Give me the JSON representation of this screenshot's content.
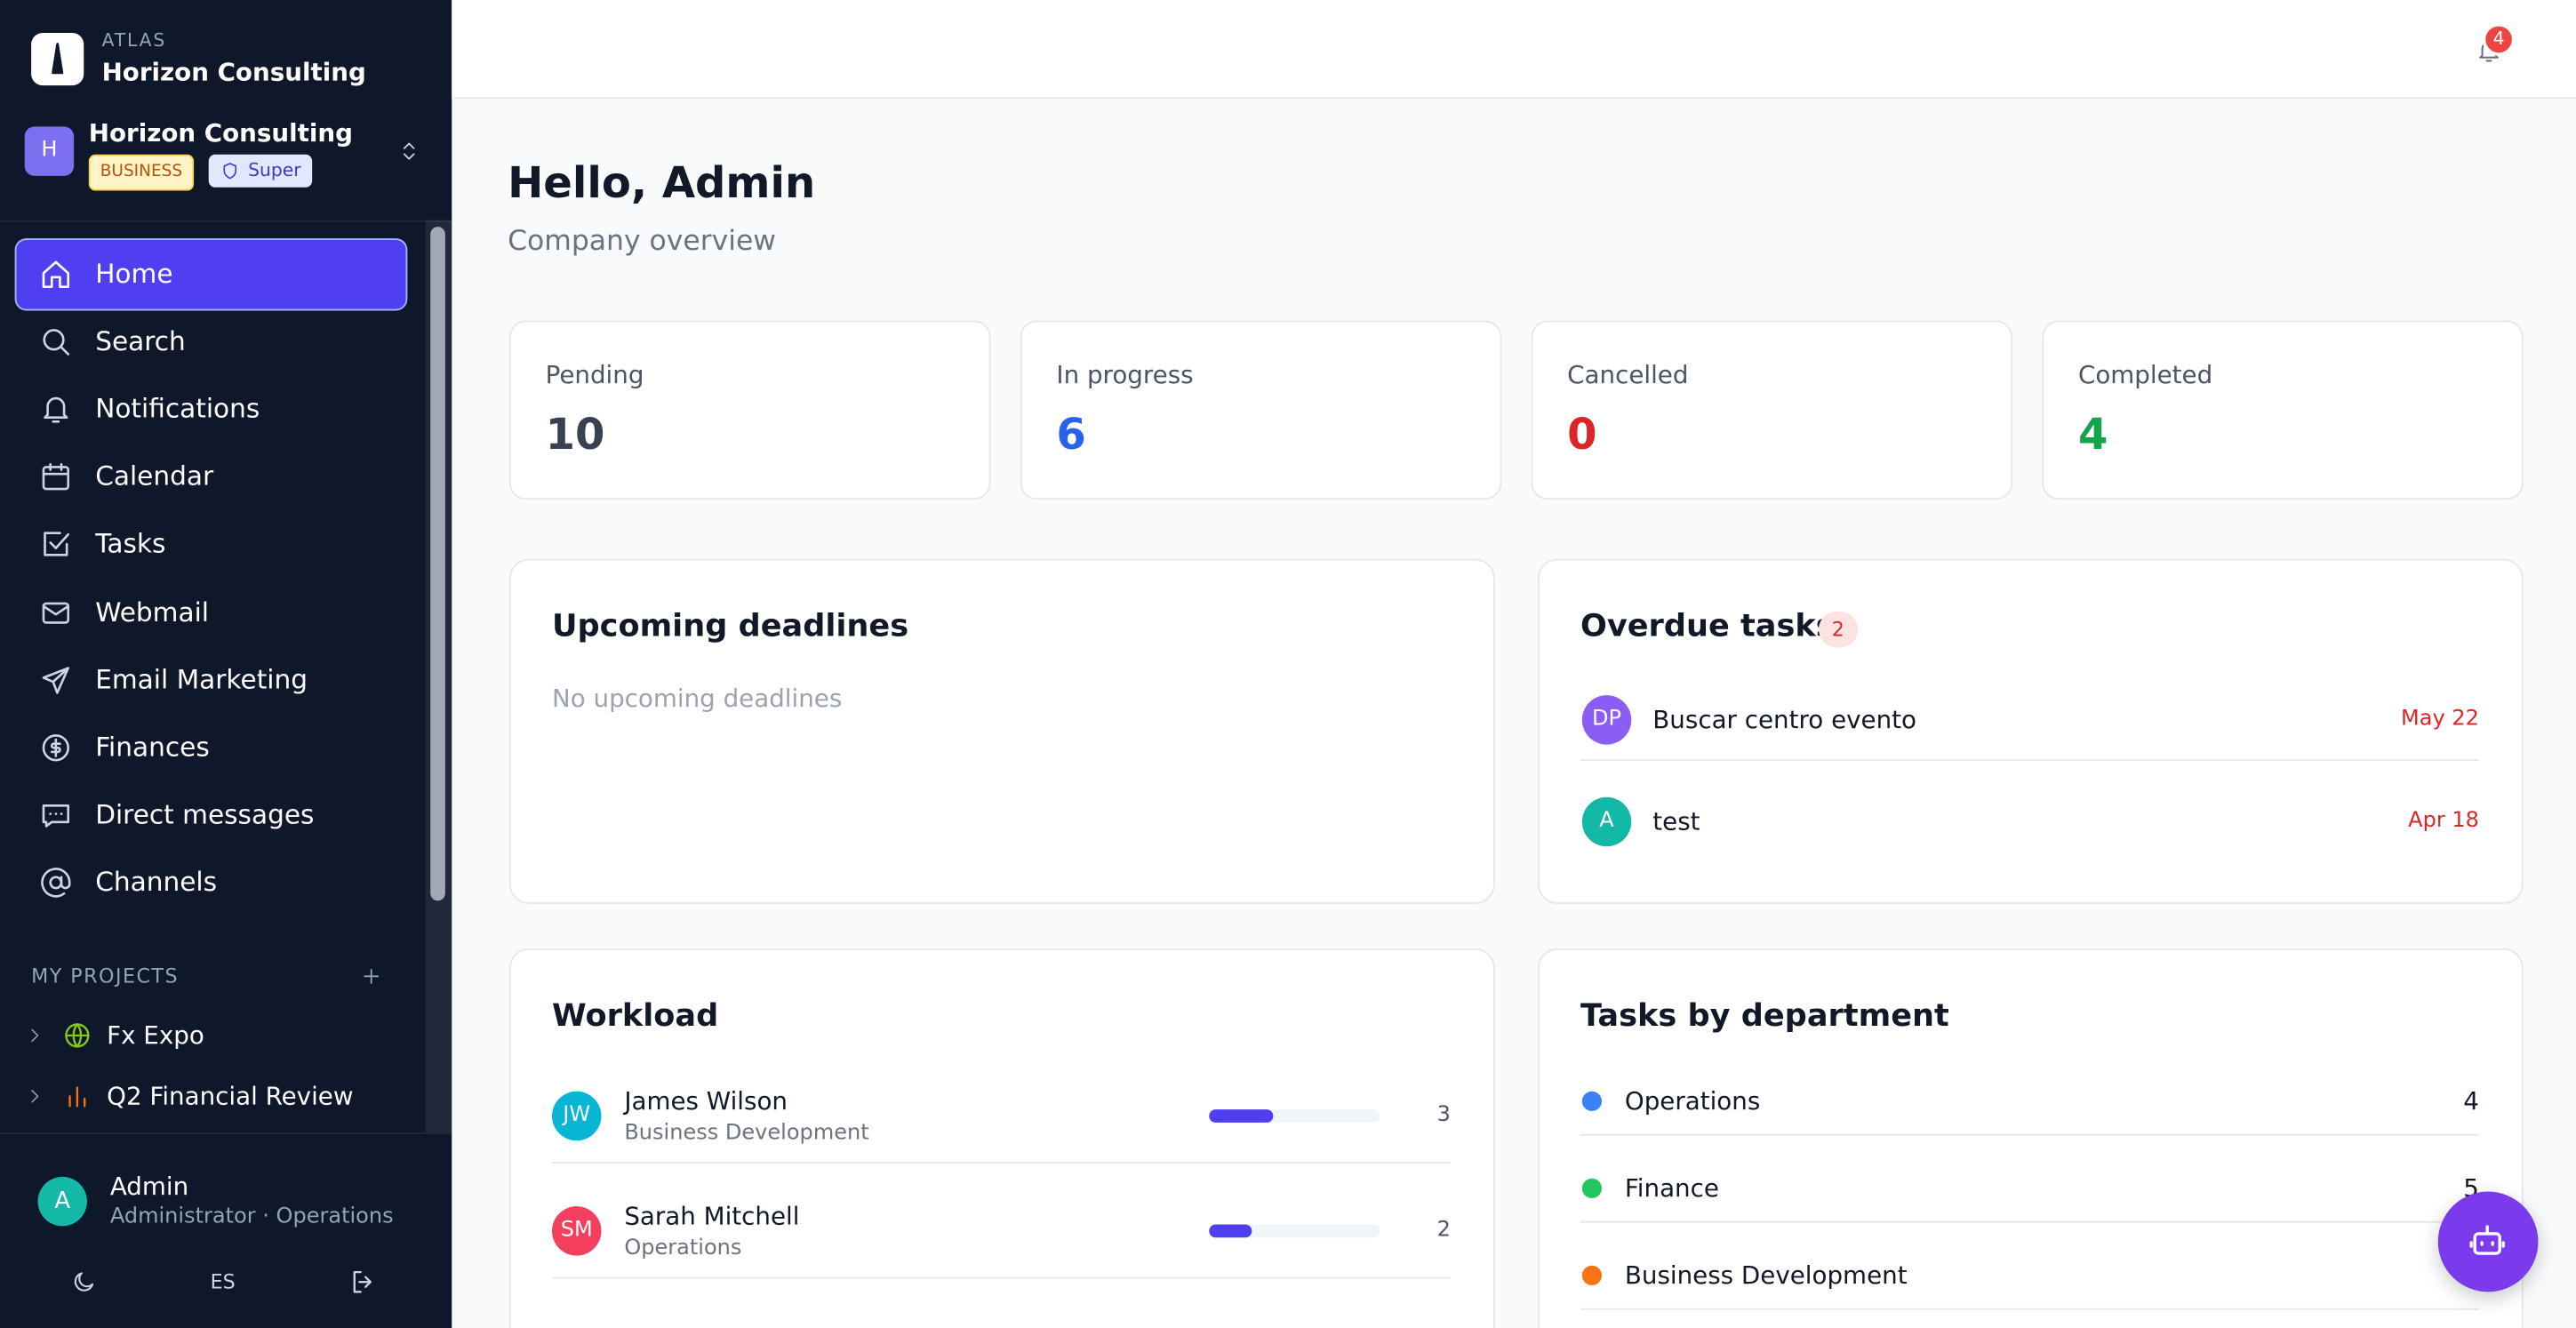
{
  "sidebar": {
    "brand": {
      "kicker": "ATLAS",
      "name": "Horizon Consulting"
    },
    "org": {
      "initial": "H",
      "name": "Horizon Consulting",
      "plan": "BUSINESS",
      "role": "Super"
    },
    "nav": [
      "Home",
      "Search",
      "Notifications",
      "Calendar",
      "Tasks",
      "Webmail",
      "Email Marketing",
      "Finances",
      "Direct messages",
      "Channels"
    ],
    "projects_label": "MY PROJECTS",
    "projects": [
      "Fx Expo",
      "Q2 Financial Review"
    ],
    "user": {
      "initial": "A",
      "name": "Admin",
      "subtitle": "Administrator · Operations"
    },
    "language": "ES"
  },
  "header": {
    "notification_count": 4
  },
  "greeting": {
    "title": "Hello, Admin",
    "subtitle": "Company overview"
  },
  "stats": [
    {
      "label": "Pending",
      "value": 10,
      "color": "#374151"
    },
    {
      "label": "In progress",
      "value": 6,
      "color": "#2563eb"
    },
    {
      "label": "Cancelled",
      "value": 0,
      "color": "#dc2626"
    },
    {
      "label": "Completed",
      "value": 4,
      "color": "#16a34a"
    }
  ],
  "deadlines": {
    "title": "Upcoming deadlines",
    "empty": "No upcoming deadlines"
  },
  "overdue": {
    "title": "Overdue tasks",
    "count": 2,
    "items": [
      {
        "initials": "DP",
        "title": "Buscar centro evento",
        "date": "May 22",
        "color": "#8b5cf6"
      },
      {
        "initials": "A",
        "title": "test",
        "date": "Apr 18",
        "color": "#14b8a6"
      }
    ]
  },
  "workload": {
    "title": "Workload",
    "members": [
      {
        "initials": "JW",
        "name": "James Wilson",
        "department": "Business Development",
        "tasks": 3,
        "color": "#06b6d4"
      },
      {
        "initials": "SM",
        "name": "Sarah Mitchell",
        "department": "Operations",
        "tasks": 2,
        "color": "#f43f5e"
      }
    ]
  },
  "departments": {
    "title": "Tasks by department",
    "items": [
      {
        "name": "Operations",
        "count": 4,
        "color": "#3b82f6"
      },
      {
        "name": "Finance",
        "count": 5,
        "color": "#22c55e"
      },
      {
        "name": "Business Development",
        "color": "#f97316"
      }
    ]
  }
}
